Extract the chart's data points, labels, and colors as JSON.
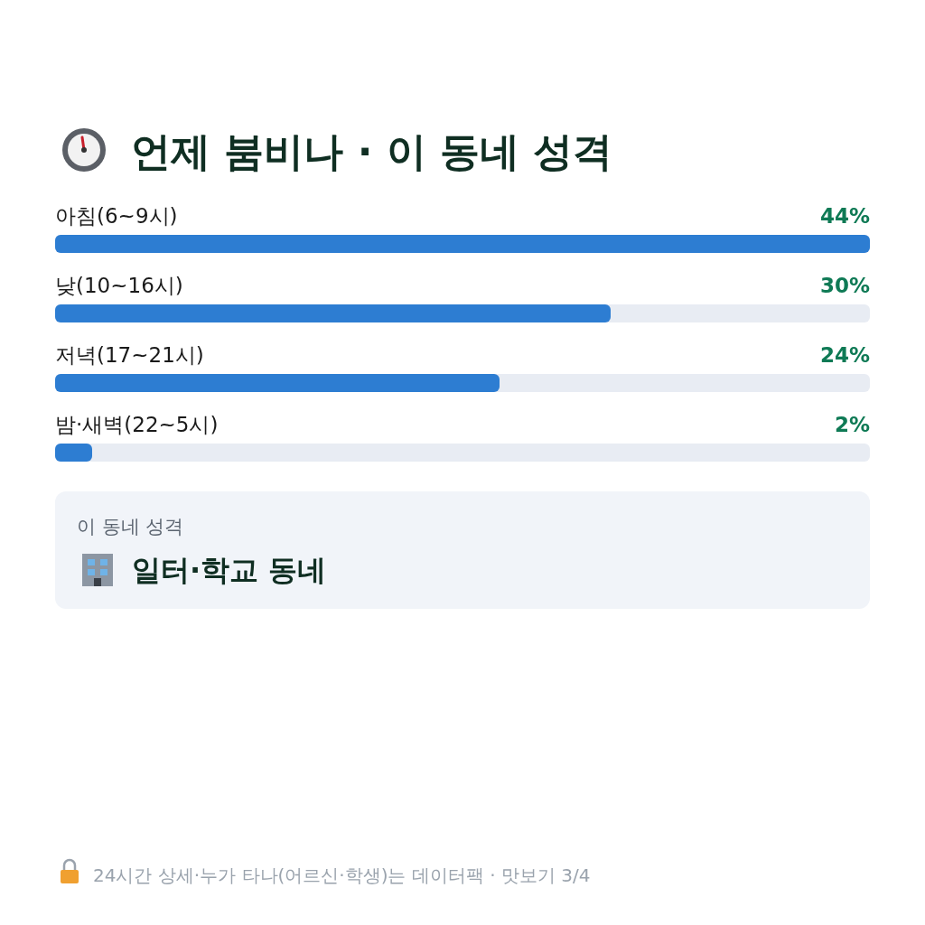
{
  "chart_data": {
    "type": "bar",
    "orientation": "horizontal",
    "title": "언제 붐비나 · 이 동네 성격",
    "categories": [
      "아침(6~9시)",
      "낮(10~16시)",
      "저녁(17~21시)",
      "밤·새벽(22~5시)"
    ],
    "values": [
      44,
      30,
      24,
      2
    ],
    "value_labels": [
      "44%",
      "30%",
      "24%",
      "2%"
    ],
    "color": "#2d7dd2",
    "annotations": [
      "이 동네 성격",
      "일터·학교 동네",
      "24시간 상세·누가 타나(어르신·학생)는 데이터팩 · 맛보기 3/4"
    ]
  }
}
